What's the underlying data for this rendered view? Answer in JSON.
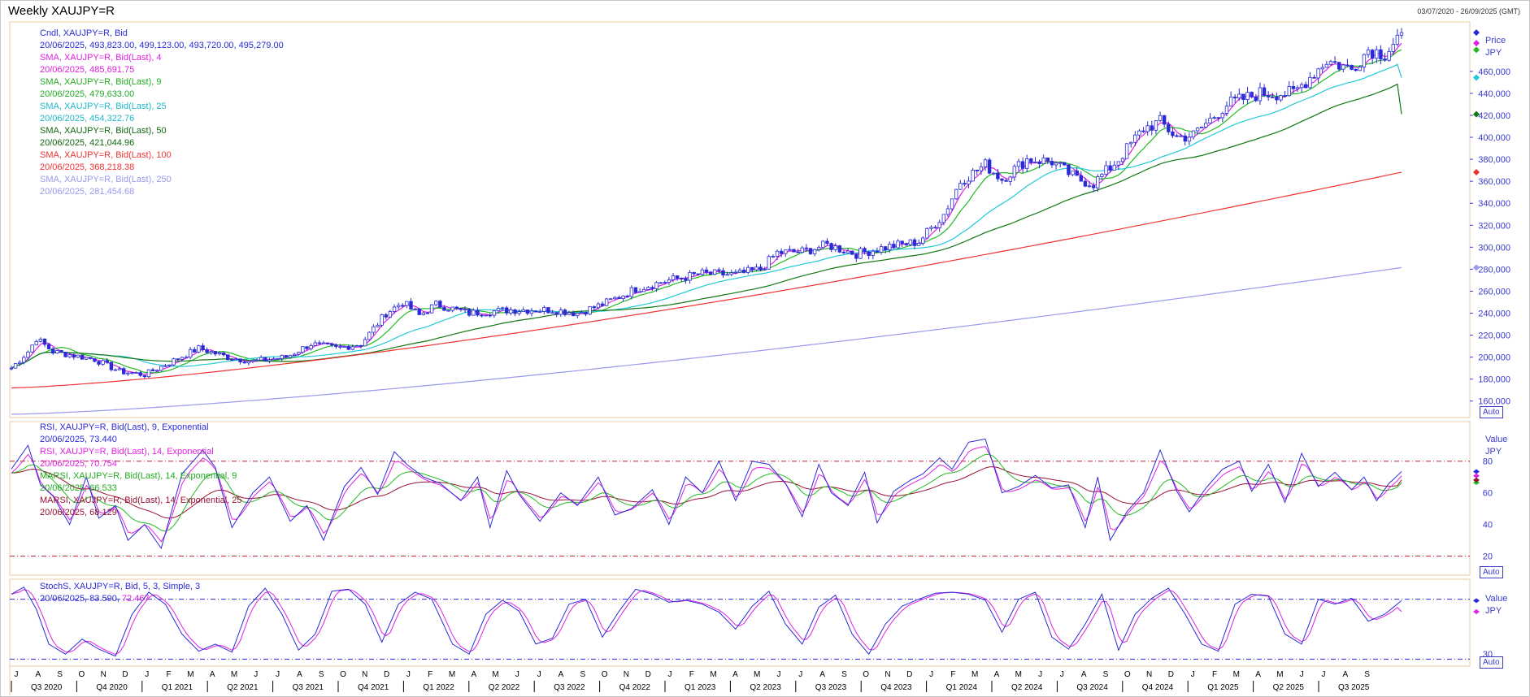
{
  "window": {
    "title": "Weekly XAUJPY=R",
    "date_range": "03/07/2020 - 26/09/2025 (GMT)"
  },
  "colors": {
    "candle": "#2a2ad6",
    "sma4": "#e020e0",
    "sma9": "#22bb22",
    "sma25": "#22c8d8",
    "sma50": "#117711",
    "sma100": "#ee3333",
    "sma250": "#9999ee",
    "rsi9": "#2a2ad6",
    "rsi14": "#e020e0",
    "marsi9": "#22bb22",
    "marsi25": "#991133",
    "stoch_k": "#2a2ad6",
    "stoch_d": "#e020e0",
    "band": "#bb2233",
    "stoch_band": "#2a2ad6"
  },
  "price_legend": [
    {
      "text": "Cndl, XAUJPY=R, Bid",
      "color": "#2a2ad6"
    },
    {
      "text": "20/06/2025, 493,823.00, 499,123.00, 493,720.00, 495,279.00",
      "color": "#2a2ad6"
    },
    {
      "text": "SMA, XAUJPY=R, Bid(Last),  4",
      "color": "#e020e0"
    },
    {
      "text": "20/06/2025, 485,691.75",
      "color": "#e020e0"
    },
    {
      "text": "SMA, XAUJPY=R, Bid(Last),  9",
      "color": "#22aa22"
    },
    {
      "text": "20/06/2025, 479,633.00",
      "color": "#22aa22"
    },
    {
      "text": "SMA, XAUJPY=R, Bid(Last),  25",
      "color": "#1fb8c8"
    },
    {
      "text": "20/06/2025, 454,322.76",
      "color": "#1fb8c8"
    },
    {
      "text": "SMA, XAUJPY=R, Bid(Last),  50",
      "color": "#116611"
    },
    {
      "text": "20/06/2025, 421,044.96",
      "color": "#116611"
    },
    {
      "text": "SMA, XAUJPY=R, Bid(Last),  100",
      "color": "#ee3333"
    },
    {
      "text": "20/06/2025, 368,218.38",
      "color": "#ee3333"
    },
    {
      "text": "SMA, XAUJPY=R, Bid(Last),  250",
      "color": "#9999ee"
    },
    {
      "text": "20/06/2025, 281,454.68",
      "color": "#9999ee"
    }
  ],
  "rsi_legend": [
    {
      "text": "RSI, XAUJPY=R, Bid(Last),  9, Exponential",
      "color": "#2a2ad6"
    },
    {
      "text": "20/06/2025, 73.440",
      "color": "#2a2ad6"
    },
    {
      "text": "RSI, XAUJPY=R, Bid(Last),  14, Exponential",
      "color": "#e020e0"
    },
    {
      "text": "20/06/2025, 70.754",
      "color": "#e020e0"
    },
    {
      "text": "MARSI, XAUJPY=R, Bid(Last),  14, Exponential, 9",
      "color": "#22aa22"
    },
    {
      "text": "20/06/2025, 66.533",
      "color": "#22aa22"
    },
    {
      "text": "MARSI, XAUJPY=R, Bid(Last),  14, Exponential, 25",
      "color": "#991133"
    },
    {
      "text": "20/06/2025, 68.129",
      "color": "#991133"
    }
  ],
  "stoch_legend": {
    "label": "StochS, XAUJPY=R, Bid,  5, 3, Simple, 3",
    "date": "20/06/2025, ",
    "k": "83.590",
    "sep": ", ",
    "d": "72.467"
  },
  "panel_labels": {
    "price_title": "Price",
    "price_unit": "JPY",
    "rsi_title": "Value",
    "rsi_unit": "JPY",
    "stoch_title": "Value",
    "stoch_unit": "JPY",
    "auto": "Auto"
  },
  "chart_data": [
    {
      "type": "candlestick",
      "panel": "price",
      "ylim": [
        145000,
        505000
      ],
      "yticks": [
        160000,
        180000,
        200000,
        220000,
        240000,
        260000,
        280000,
        300000,
        320000,
        340000,
        360000,
        380000,
        400000,
        420000,
        440000,
        460000
      ],
      "ytick_labels": [
        "160,000",
        "180,000",
        "200,000",
        "220,000",
        "240,000",
        "260,000",
        "280,000",
        "300,000",
        "320,000",
        "340,000",
        "360,000",
        "380,000",
        "400,000",
        "420,000",
        "440,000",
        "460,000"
      ],
      "close_anchors": [
        [
          0,
          190000
        ],
        [
          4,
          205000
        ],
        [
          6,
          217000
        ],
        [
          10,
          205000
        ],
        [
          20,
          198000
        ],
        [
          26,
          187000
        ],
        [
          32,
          184000
        ],
        [
          38,
          195000
        ],
        [
          45,
          208000
        ],
        [
          52,
          200000
        ],
        [
          58,
          196000
        ],
        [
          66,
          200000
        ],
        [
          72,
          212000
        ],
        [
          78,
          208000
        ],
        [
          84,
          212000
        ],
        [
          90,
          240000
        ],
        [
          94,
          250000
        ],
        [
          98,
          238000
        ],
        [
          102,
          248000
        ],
        [
          110,
          240000
        ],
        [
          120,
          243000
        ],
        [
          130,
          243000
        ],
        [
          136,
          240000
        ],
        [
          142,
          248000
        ],
        [
          150,
          262000
        ],
        [
          158,
          270000
        ],
        [
          166,
          276000
        ],
        [
          174,
          275000
        ],
        [
          180,
          280000
        ],
        [
          184,
          295000
        ],
        [
          190,
          296000
        ],
        [
          196,
          302000
        ],
        [
          203,
          294000
        ],
        [
          210,
          300000
        ],
        [
          218,
          305000
        ],
        [
          224,
          330000
        ],
        [
          228,
          360000
        ],
        [
          234,
          375000
        ],
        [
          238,
          362000
        ],
        [
          244,
          380000
        ],
        [
          250,
          378000
        ],
        [
          256,
          362000
        ],
        [
          260,
          358000
        ],
        [
          266,
          380000
        ],
        [
          272,
          408000
        ],
        [
          276,
          414000
        ],
        [
          280,
          400000
        ],
        [
          284,
          402000
        ],
        [
          292,
          430000
        ],
        [
          300,
          440000
        ],
        [
          308,
          440000
        ],
        [
          316,
          470000
        ],
        [
          322,
          462000
        ],
        [
          326,
          480000
        ],
        [
          330,
          476000
        ],
        [
          334,
          495279
        ]
      ],
      "last": {
        "date": "20/06/2025",
        "open": 493823,
        "high": 499123,
        "low": 493720,
        "close": 495279
      },
      "overlays": [
        {
          "name": "SMA 4",
          "period": 4,
          "last": 485691.75
        },
        {
          "name": "SMA 9",
          "period": 9,
          "last": 479633.0
        },
        {
          "name": "SMA 25",
          "period": 25,
          "last": 454322.76
        },
        {
          "name": "SMA 50",
          "period": 50,
          "last": 421044.96
        },
        {
          "name": "SMA 100",
          "period": 100,
          "last": 368218.38
        },
        {
          "name": "SMA 250",
          "period": 250,
          "last": 281454.68,
          "start": 148000
        }
      ]
    },
    {
      "type": "line",
      "panel": "rsi",
      "ylim": [
        8,
        105
      ],
      "yticks": [
        20,
        40,
        60,
        80
      ],
      "ytick_labels": [
        "20",
        "40",
        "60",
        "80"
      ],
      "hlines": [
        20,
        80
      ],
      "rsi9_anchors": [
        [
          0,
          75
        ],
        [
          4,
          90
        ],
        [
          7,
          65
        ],
        [
          10,
          58
        ],
        [
          14,
          40
        ],
        [
          18,
          70
        ],
        [
          21,
          44
        ],
        [
          25,
          52
        ],
        [
          28,
          30
        ],
        [
          32,
          40
        ],
        [
          36,
          25
        ],
        [
          41,
          72
        ],
        [
          46,
          87
        ],
        [
          49,
          76
        ],
        [
          53,
          38
        ],
        [
          58,
          60
        ],
        [
          62,
          70
        ],
        [
          67,
          42
        ],
        [
          71,
          52
        ],
        [
          75,
          30
        ],
        [
          80,
          64
        ],
        [
          84,
          76
        ],
        [
          88,
          59
        ],
        [
          92,
          86
        ],
        [
          95,
          78
        ],
        [
          99,
          70
        ],
        [
          103,
          66
        ],
        [
          108,
          55
        ],
        [
          112,
          70
        ],
        [
          115,
          38
        ],
        [
          119,
          74
        ],
        [
          122,
          59
        ],
        [
          127,
          42
        ],
        [
          132,
          60
        ],
        [
          136,
          52
        ],
        [
          141,
          70
        ],
        [
          145,
          46
        ],
        [
          149,
          50
        ],
        [
          154,
          62
        ],
        [
          158,
          40
        ],
        [
          162,
          70
        ],
        [
          166,
          60
        ],
        [
          170,
          80
        ],
        [
          174,
          55
        ],
        [
          178,
          80
        ],
        [
          182,
          78
        ],
        [
          186,
          66
        ],
        [
          190,
          45
        ],
        [
          194,
          78
        ],
        [
          197,
          60
        ],
        [
          201,
          52
        ],
        [
          205,
          73
        ],
        [
          208,
          41
        ],
        [
          212,
          61
        ],
        [
          216,
          68
        ],
        [
          219,
          72
        ],
        [
          223,
          82
        ],
        [
          226,
          75
        ],
        [
          230,
          92
        ],
        [
          234,
          94
        ],
        [
          238,
          60
        ],
        [
          242,
          64
        ],
        [
          246,
          71
        ],
        [
          250,
          63
        ],
        [
          254,
          65
        ],
        [
          258,
          38
        ],
        [
          261,
          70
        ],
        [
          264,
          30
        ],
        [
          268,
          48
        ],
        [
          272,
          60
        ],
        [
          276,
          87
        ],
        [
          280,
          61
        ],
        [
          283,
          48
        ],
        [
          287,
          63
        ],
        [
          291,
          75
        ],
        [
          295,
          80
        ],
        [
          298,
          61
        ],
        [
          302,
          78
        ],
        [
          306,
          54
        ],
        [
          310,
          85
        ],
        [
          314,
          64
        ],
        [
          318,
          73
        ],
        [
          322,
          62
        ],
        [
          325,
          70
        ],
        [
          328,
          55
        ],
        [
          331,
          66
        ],
        [
          334,
          73.44
        ]
      ],
      "rsi14_last": 70.754,
      "marsi9_last": 66.533,
      "marsi25_last": 68.129
    },
    {
      "type": "line",
      "panel": "stochastic",
      "ylim": [
        18,
        105
      ],
      "yticks": [
        30
      ],
      "ytick_labels": [
        "30"
      ],
      "hlines": [
        25,
        85
      ],
      "k_anchors": [
        [
          0,
          90
        ],
        [
          3,
          97
        ],
        [
          6,
          75
        ],
        [
          9,
          40
        ],
        [
          13,
          30
        ],
        [
          17,
          45
        ],
        [
          21,
          35
        ],
        [
          25,
          28
        ],
        [
          29,
          70
        ],
        [
          33,
          92
        ],
        [
          37,
          80
        ],
        [
          41,
          50
        ],
        [
          45,
          33
        ],
        [
          49,
          40
        ],
        [
          53,
          32
        ],
        [
          57,
          78
        ],
        [
          61,
          96
        ],
        [
          65,
          70
        ],
        [
          69,
          34
        ],
        [
          73,
          50
        ],
        [
          77,
          93
        ],
        [
          81,
          95
        ],
        [
          85,
          80
        ],
        [
          89,
          42
        ],
        [
          93,
          80
        ],
        [
          97,
          92
        ],
        [
          101,
          85
        ],
        [
          106,
          40
        ],
        [
          110,
          30
        ],
        [
          114,
          70
        ],
        [
          118,
          84
        ],
        [
          122,
          73
        ],
        [
          126,
          40
        ],
        [
          130,
          46
        ],
        [
          134,
          80
        ],
        [
          138,
          85
        ],
        [
          142,
          47
        ],
        [
          146,
          73
        ],
        [
          150,
          95
        ],
        [
          154,
          90
        ],
        [
          158,
          82
        ],
        [
          162,
          84
        ],
        [
          166,
          80
        ],
        [
          170,
          72
        ],
        [
          174,
          55
        ],
        [
          178,
          78
        ],
        [
          182,
          93
        ],
        [
          186,
          60
        ],
        [
          190,
          40
        ],
        [
          194,
          77
        ],
        [
          198,
          89
        ],
        [
          202,
          50
        ],
        [
          206,
          30
        ],
        [
          210,
          60
        ],
        [
          214,
          78
        ],
        [
          218,
          85
        ],
        [
          222,
          91
        ],
        [
          226,
          92
        ],
        [
          230,
          90
        ],
        [
          234,
          84
        ],
        [
          238,
          52
        ],
        [
          242,
          85
        ],
        [
          246,
          92
        ],
        [
          250,
          47
        ],
        [
          254,
          35
        ],
        [
          258,
          60
        ],
        [
          262,
          90
        ],
        [
          266,
          34
        ],
        [
          270,
          70
        ],
        [
          274,
          86
        ],
        [
          278,
          96
        ],
        [
          282,
          70
        ],
        [
          286,
          40
        ],
        [
          290,
          33
        ],
        [
          294,
          80
        ],
        [
          298,
          90
        ],
        [
          302,
          88
        ],
        [
          306,
          50
        ],
        [
          310,
          40
        ],
        [
          314,
          85
        ],
        [
          318,
          80
        ],
        [
          322,
          86
        ],
        [
          326,
          63
        ],
        [
          330,
          70
        ],
        [
          334,
          83.59
        ]
      ],
      "k_last": 83.59,
      "d_last": 72.467
    }
  ],
  "x_axis": {
    "month_labels": [
      "J",
      "A",
      "S",
      "O",
      "N",
      "D",
      "J",
      "F",
      "M",
      "A",
      "M",
      "J",
      "J",
      "A",
      "S",
      "O",
      "N",
      "D",
      "J",
      "F",
      "M",
      "A",
      "M",
      "J",
      "J",
      "A",
      "S",
      "O",
      "N",
      "D",
      "J",
      "F",
      "M",
      "A",
      "M",
      "J",
      "J",
      "A",
      "S",
      "O",
      "N",
      "D",
      "J",
      "F",
      "M",
      "A",
      "M",
      "J",
      "J",
      "A",
      "S",
      "O",
      "N",
      "D",
      "J",
      "F",
      "M",
      "A",
      "M",
      "J",
      "J",
      "A",
      "S"
    ],
    "quarter_labels": [
      "Q3 2020",
      "Q4 2020",
      "Q1 2021",
      "Q2 2021",
      "Q3 2021",
      "Q4 2021",
      "Q1 2022",
      "Q2 2022",
      "Q3 2022",
      "Q4 2022",
      "Q1 2023",
      "Q2 2023",
      "Q3 2023",
      "Q4 2023",
      "Q1 2024",
      "Q2 2024",
      "Q3 2024",
      "Q4 2024",
      "Q1 2025",
      "Q2 2025",
      "Q3 2025"
    ]
  }
}
